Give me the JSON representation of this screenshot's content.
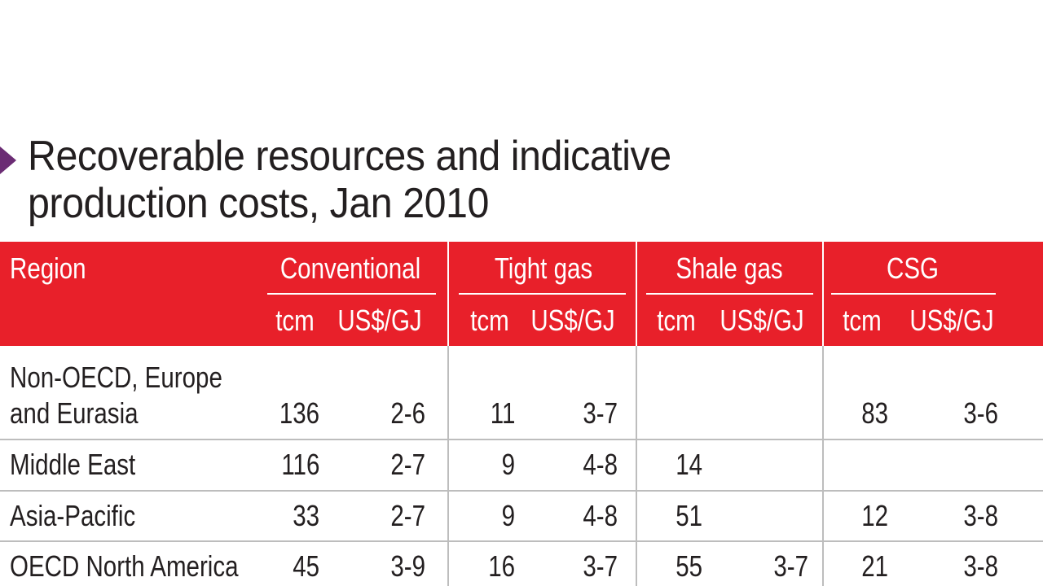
{
  "title_lines": [
    "Recoverable resources and indicative",
    "production costs, Jan 2010"
  ],
  "table": {
    "header": {
      "region": "Region",
      "groups": [
        {
          "name": "Conventional",
          "units": [
            "tcm",
            "US$/GJ"
          ]
        },
        {
          "name": "Tight gas",
          "units": [
            "tcm",
            "US$/GJ"
          ]
        },
        {
          "name": "Shale gas",
          "units": [
            "tcm",
            "US$/GJ"
          ]
        },
        {
          "name": "CSG",
          "units": [
            "tcm",
            "US$/GJ"
          ]
        }
      ]
    },
    "rows": [
      {
        "region": "Non-OECD, Europe and Eurasia",
        "cells": [
          136,
          "2-6",
          11,
          "3-7",
          null,
          null,
          83,
          "3-6"
        ]
      },
      {
        "region": "Middle East",
        "cells": [
          116,
          "2-7",
          9,
          "4-8",
          14,
          null,
          null,
          null
        ]
      },
      {
        "region": "Asia-Pacific",
        "cells": [
          33,
          "2-7",
          9,
          "4-8",
          51,
          null,
          12,
          "3-8"
        ]
      },
      {
        "region": "OECD North America",
        "cells": [
          45,
          "3-9",
          16,
          "3-7",
          55,
          "3-7",
          21,
          "3-8"
        ]
      }
    ]
  }
}
